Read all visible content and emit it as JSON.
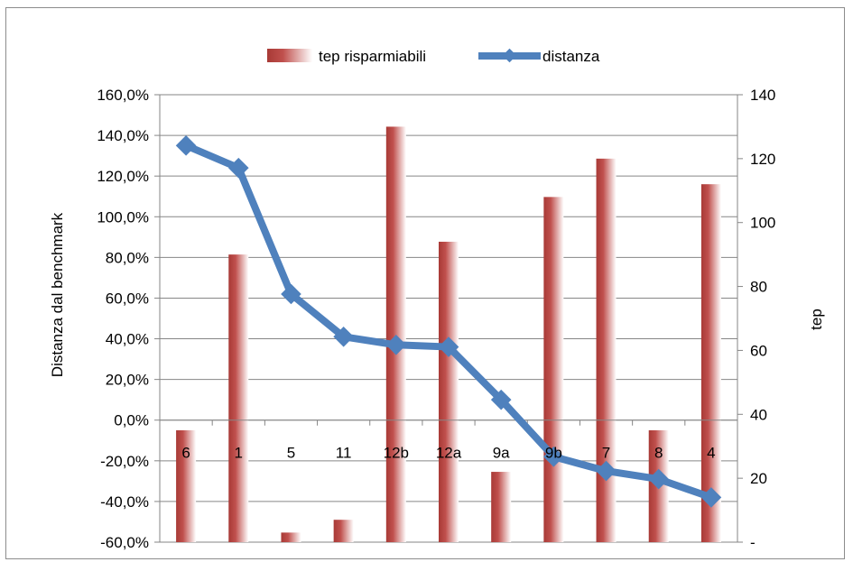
{
  "chart_data": {
    "type": "bar",
    "categories": [
      "6",
      "1",
      "5",
      "11",
      "12b",
      "12a",
      "9a",
      "9b",
      "7",
      "8",
      "4"
    ],
    "series": [
      {
        "name": "tep risparmiabili",
        "type": "bar",
        "axis": "right",
        "values": [
          35,
          90,
          3,
          7,
          130,
          94,
          22,
          108,
          120,
          35,
          112
        ],
        "color": "#c0504d"
      },
      {
        "name": "distanza",
        "type": "line",
        "axis": "left",
        "values": [
          1.35,
          1.24,
          0.62,
          0.41,
          0.37,
          0.36,
          0.1,
          -0.18,
          -0.25,
          -0.29,
          -0.38
        ],
        "color": "#4f81bd"
      }
    ],
    "ylabel": "Distanza dal benchmark",
    "y2label": "tep",
    "ylim": [
      -0.6,
      1.6
    ],
    "y2lim": [
      0,
      140
    ],
    "yticks": [
      "160,0%",
      "140,0%",
      "120,0%",
      "100,0%",
      "80,0%",
      "60,0%",
      "40,0%",
      "20,0%",
      "0,0%",
      "-20,0%",
      "-40,0%",
      "-60,0%"
    ],
    "y2ticks": [
      "140",
      "120",
      "100",
      "80",
      "60",
      "40",
      "20",
      "-"
    ],
    "grid": true,
    "legend": "top"
  }
}
